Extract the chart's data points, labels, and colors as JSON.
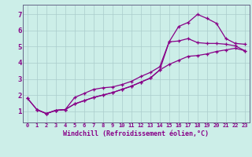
{
  "xlabel": "Windchill (Refroidissement éolien,°C)",
  "bg_color": "#cceee8",
  "grid_color": "#aacccc",
  "line_color": "#880088",
  "xlim": [
    -0.5,
    23.5
  ],
  "ylim": [
    0.3,
    7.6
  ],
  "yticks": [
    1,
    2,
    3,
    4,
    5,
    6,
    7
  ],
  "xticks": [
    0,
    1,
    2,
    3,
    4,
    5,
    6,
    7,
    8,
    9,
    10,
    11,
    12,
    13,
    14,
    15,
    16,
    17,
    18,
    19,
    20,
    21,
    22,
    23
  ],
  "line1_x": [
    1,
    2,
    3,
    4,
    5,
    6,
    7,
    8,
    9,
    10,
    11,
    12,
    13,
    14,
    15,
    16,
    17,
    18,
    19,
    20,
    21,
    22,
    23
  ],
  "line1_y": [
    1.1,
    0.85,
    1.05,
    1.1,
    1.85,
    2.1,
    2.35,
    2.45,
    2.5,
    2.65,
    2.85,
    3.15,
    3.4,
    3.75,
    5.3,
    6.25,
    6.5,
    7.0,
    6.75,
    6.45,
    5.5,
    5.2,
    5.15
  ],
  "line2_x": [
    0,
    1,
    2,
    3,
    4,
    5,
    6,
    7,
    8,
    9,
    10,
    11,
    12,
    13,
    14,
    15,
    16,
    17,
    18,
    19,
    20,
    21,
    22,
    23
  ],
  "line2_y": [
    1.8,
    1.1,
    0.85,
    1.05,
    1.1,
    1.45,
    1.65,
    1.85,
    2.0,
    2.15,
    2.35,
    2.55,
    2.8,
    3.05,
    3.55,
    5.3,
    5.35,
    5.5,
    5.25,
    5.2,
    5.2,
    5.15,
    5.05,
    4.75
  ],
  "line3_x": [
    0,
    1,
    2,
    3,
    4,
    5,
    6,
    7,
    8,
    9,
    10,
    11,
    12,
    13,
    14,
    15,
    16,
    17,
    18,
    19,
    20,
    21,
    22,
    23
  ],
  "line3_y": [
    1.8,
    1.1,
    0.85,
    1.05,
    1.1,
    1.45,
    1.65,
    1.85,
    2.0,
    2.15,
    2.35,
    2.55,
    2.8,
    3.05,
    3.55,
    3.9,
    4.15,
    4.4,
    4.45,
    4.55,
    4.7,
    4.8,
    4.9,
    4.75
  ]
}
